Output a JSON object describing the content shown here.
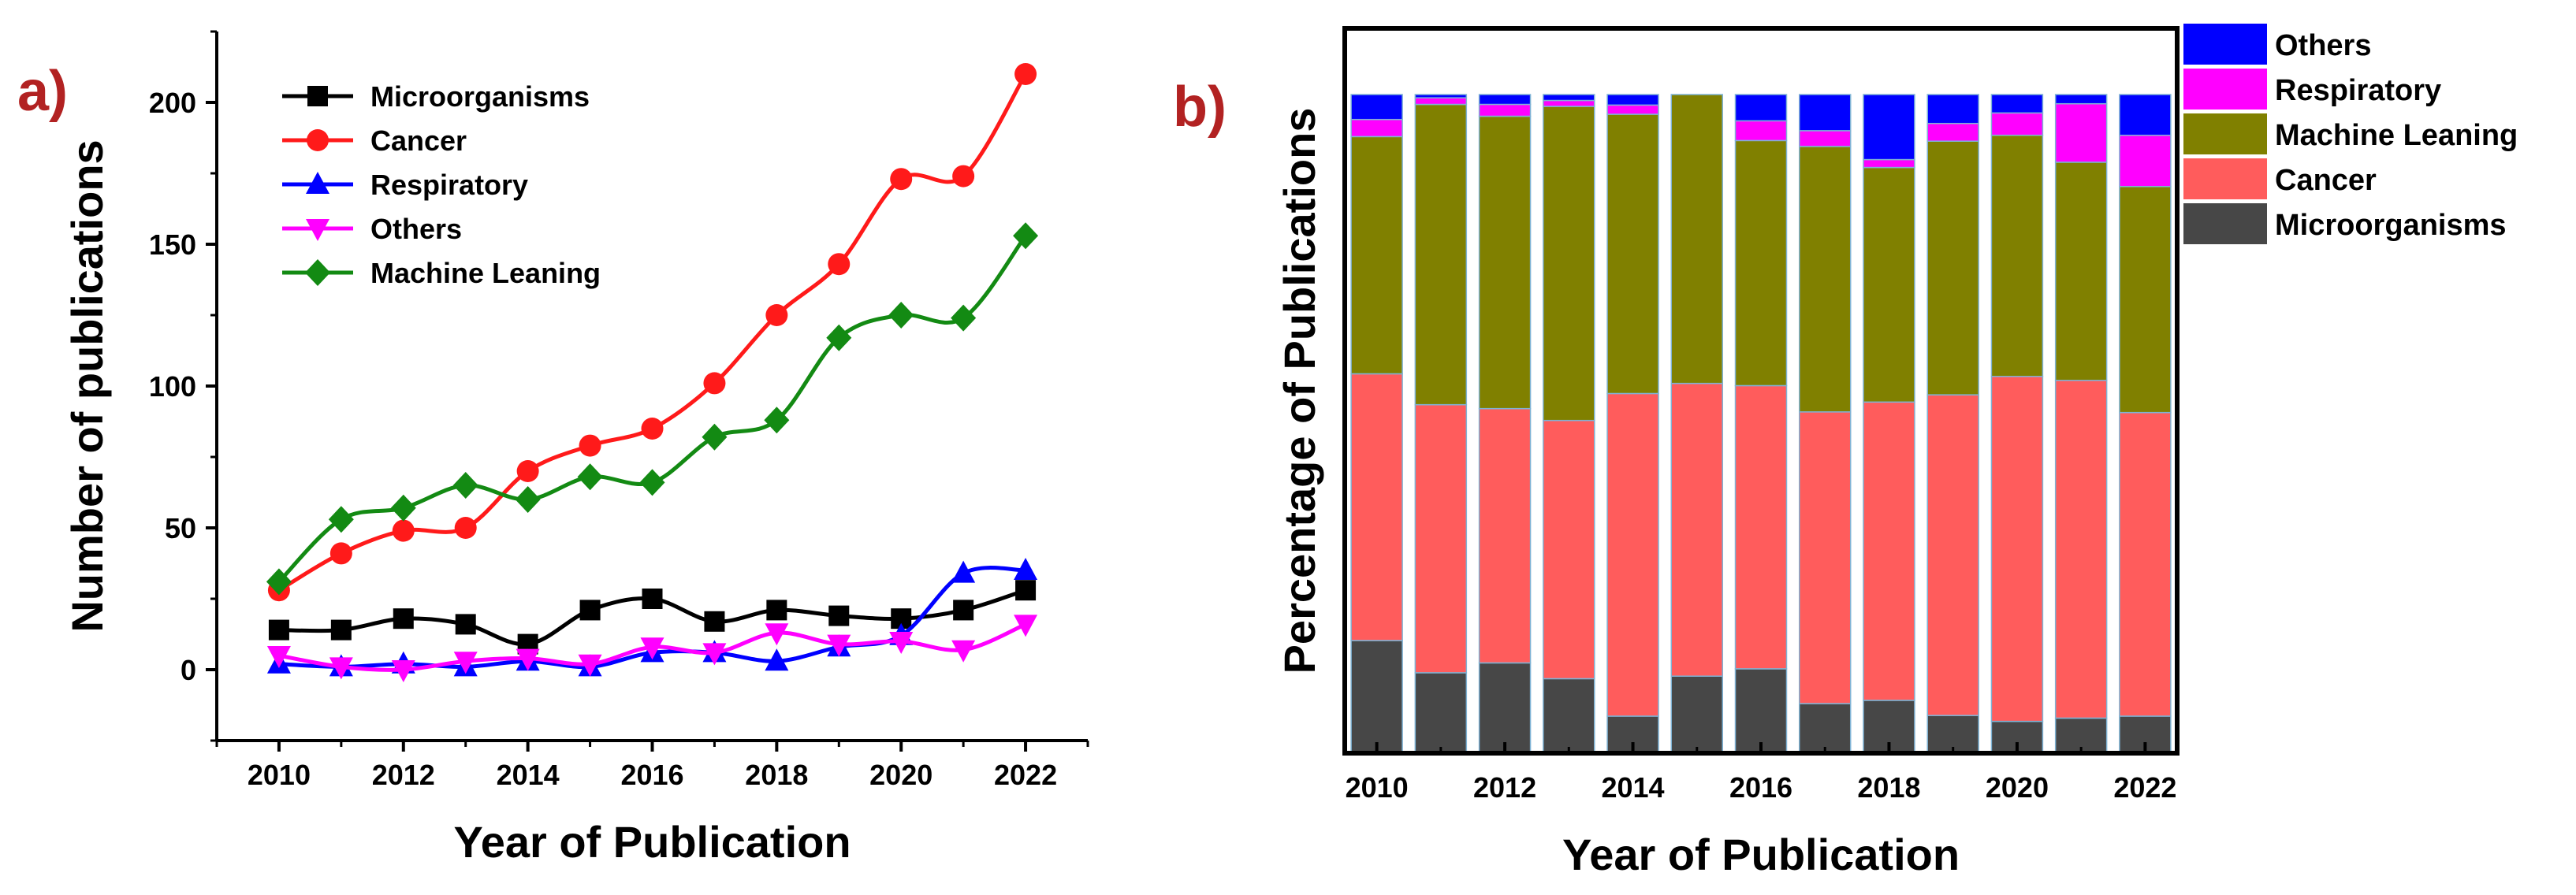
{
  "panels": {
    "a": "a)",
    "b": "b)"
  },
  "chart_data": [
    {
      "type": "line",
      "id": "a",
      "title": "",
      "xlabel": "Year of Publication",
      "ylabel": "Number of publications",
      "x": [
        2010,
        2011,
        2012,
        2013,
        2014,
        2015,
        2016,
        2017,
        2018,
        2019,
        2020,
        2021,
        2022
      ],
      "xticks": [
        "2010",
        "2012",
        "2014",
        "2016",
        "2018",
        "2020",
        "2022"
      ],
      "xlim": [
        2009,
        2023
      ],
      "ylim": [
        -25,
        225
      ],
      "yticks": [
        "0",
        "50",
        "100",
        "150",
        "200"
      ],
      "series": [
        {
          "name": "Microorganisms",
          "color": "#000000",
          "marker": "square",
          "values": [
            14,
            14,
            18,
            16,
            9,
            21,
            25,
            17,
            21,
            19,
            18,
            21,
            28
          ]
        },
        {
          "name": "Cancer",
          "color": "#ff1a1a",
          "marker": "circle",
          "values": [
            28,
            41,
            49,
            50,
            70,
            79,
            85,
            101,
            125,
            143,
            173,
            174,
            210
          ]
        },
        {
          "name": "Respiratory",
          "color": "#0000ff",
          "marker": "triangle-up",
          "values": [
            2,
            1,
            2,
            1,
            3,
            1,
            6,
            6,
            3,
            8,
            12,
            34,
            35
          ]
        },
        {
          "name": "Others",
          "color": "#ff00ff",
          "marker": "triangle-down",
          "values": [
            5,
            1,
            0,
            3,
            4,
            2,
            8,
            6,
            13,
            9,
            10,
            7,
            16
          ]
        },
        {
          "name": "Machine Leaning",
          "color": "#138a13",
          "marker": "diamond",
          "values": [
            31,
            53,
            57,
            65,
            60,
            68,
            66,
            82,
            88,
            117,
            125,
            124,
            153
          ]
        }
      ],
      "legend": "top-left"
    },
    {
      "type": "bar",
      "id": "b",
      "stacked": true,
      "title": "",
      "xlabel": "Year of Publication",
      "ylabel": "Percentage of Publications",
      "categories": [
        "2010",
        "2011",
        "2012",
        "2013",
        "2014",
        "2015",
        "2016",
        "2017",
        "2018",
        "2019",
        "2020",
        "2021",
        "2022"
      ],
      "xticks": [
        "2010",
        "2012",
        "2014",
        "2016",
        "2018",
        "2020",
        "2022"
      ],
      "ylim": [
        0,
        100
      ],
      "series": [
        {
          "name": "Microorganisms",
          "color": "#474747",
          "values": [
            16.9,
            12.0,
            13.5,
            11.1,
            5.4,
            11.6,
            12.6,
            7.3,
            7.8,
            5.5,
            4.6,
            5.1,
            5.4
          ]
        },
        {
          "name": "Cancer",
          "color": "#ff5c5c",
          "values": [
            40.6,
            40.8,
            38.7,
            39.3,
            49.1,
            45.0,
            43.1,
            44.4,
            45.4,
            48.8,
            52.5,
            51.4,
            46.2
          ]
        },
        {
          "name": "Machine Leaning",
          "color": "#808000",
          "values": [
            36.1,
            45.7,
            44.5,
            47.8,
            42.5,
            44.4,
            37.3,
            40.4,
            35.7,
            38.6,
            36.7,
            33.2,
            34.4
          ]
        },
        {
          "name": "Respiratory",
          "color": "#ff00ff",
          "values": [
            2.6,
            1.0,
            1.8,
            0.9,
            1.4,
            0.0,
            3.0,
            2.4,
            1.2,
            2.7,
            3.4,
            8.9,
            7.8
          ]
        },
        {
          "name": "Others",
          "color": "#0000ff",
          "values": [
            3.8,
            0.5,
            1.5,
            0.9,
            1.6,
            0.0,
            4.0,
            5.5,
            9.9,
            4.4,
            2.8,
            1.4,
            6.2
          ]
        }
      ],
      "legend_order": [
        "Others",
        "Respiratory",
        "Machine Leaning",
        "Cancer",
        "Microorganisms"
      ],
      "legend": "top-right"
    }
  ]
}
